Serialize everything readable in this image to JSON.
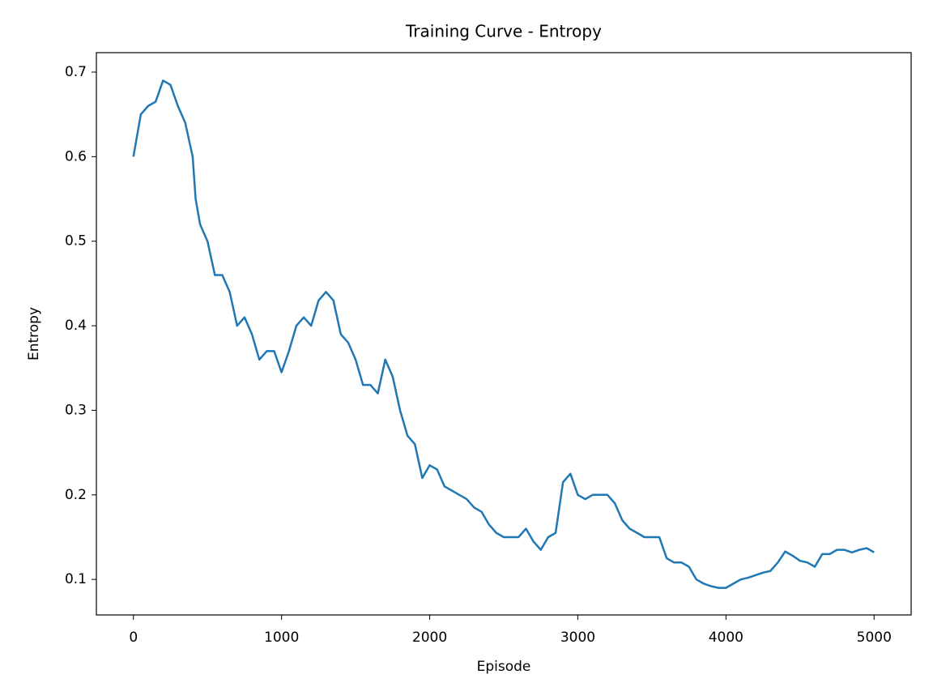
{
  "chart_data": {
    "type": "line",
    "title": "Training Curve - Entropy",
    "x_label": "Episode",
    "y_label": "Entropy",
    "x": [
      0,
      50,
      100,
      150,
      200,
      250,
      300,
      350,
      400,
      420,
      450,
      500,
      550,
      600,
      650,
      700,
      750,
      800,
      850,
      900,
      950,
      1000,
      1050,
      1100,
      1150,
      1200,
      1250,
      1300,
      1350,
      1400,
      1450,
      1500,
      1550,
      1600,
      1650,
      1700,
      1750,
      1800,
      1850,
      1900,
      1950,
      2000,
      2050,
      2100,
      2150,
      2200,
      2250,
      2300,
      2350,
      2400,
      2450,
      2500,
      2550,
      2600,
      2650,
      2700,
      2750,
      2800,
      2850,
      2900,
      2950,
      3000,
      3050,
      3100,
      3150,
      3200,
      3250,
      3300,
      3350,
      3400,
      3450,
      3500,
      3550,
      3600,
      3650,
      3700,
      3750,
      3800,
      3850,
      3900,
      3950,
      4000,
      4050,
      4100,
      4150,
      4200,
      4250,
      4300,
      4350,
      4400,
      4450,
      4500,
      4550,
      4600,
      4650,
      4700,
      4750,
      4800,
      4850,
      4900,
      4950,
      5000
    ],
    "series": [
      {
        "name": "Entropy",
        "color": "#1f77b4",
        "values": [
          0.6,
          0.65,
          0.66,
          0.665,
          0.69,
          0.685,
          0.66,
          0.64,
          0.6,
          0.55,
          0.52,
          0.5,
          0.46,
          0.46,
          0.44,
          0.4,
          0.41,
          0.39,
          0.36,
          0.37,
          0.37,
          0.345,
          0.37,
          0.4,
          0.41,
          0.4,
          0.43,
          0.44,
          0.43,
          0.39,
          0.38,
          0.36,
          0.33,
          0.33,
          0.32,
          0.36,
          0.34,
          0.3,
          0.27,
          0.26,
          0.22,
          0.235,
          0.23,
          0.21,
          0.205,
          0.2,
          0.195,
          0.185,
          0.18,
          0.165,
          0.155,
          0.15,
          0.15,
          0.15,
          0.16,
          0.145,
          0.135,
          0.15,
          0.155,
          0.215,
          0.225,
          0.2,
          0.195,
          0.2,
          0.2,
          0.2,
          0.19,
          0.17,
          0.16,
          0.155,
          0.15,
          0.15,
          0.15,
          0.125,
          0.12,
          0.12,
          0.115,
          0.1,
          0.095,
          0.092,
          0.09,
          0.09,
          0.095,
          0.1,
          0.102,
          0.105,
          0.108,
          0.11,
          0.12,
          0.133,
          0.128,
          0.122,
          0.12,
          0.115,
          0.13,
          0.13,
          0.135,
          0.135,
          0.132,
          0.135,
          0.137,
          0.132
        ]
      }
    ],
    "xlim": [
      -250,
      5250
    ],
    "xticks": [
      0,
      1000,
      2000,
      3000,
      4000,
      5000
    ],
    "ylim": [
      0.058,
      0.723
    ],
    "yticks": [
      0.1,
      0.2,
      0.3,
      0.4,
      0.5,
      0.6,
      0.7
    ],
    "grid": false
  }
}
